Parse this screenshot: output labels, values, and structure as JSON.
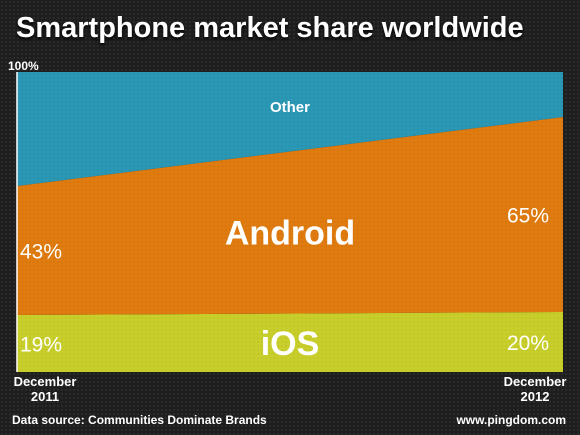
{
  "title": "Smartphone market share worldwide",
  "footer": {
    "source": "Data source: Communities Dominate Brands",
    "credit": "www.pingdom.com"
  },
  "colors": {
    "ios": "#c9cf2a",
    "android": "#e07b0f",
    "other": "#2a97b5",
    "text": "#ffffff"
  },
  "chart_data": {
    "type": "area",
    "stacked": true,
    "y_axis_top_label": "100%",
    "ylim": [
      0,
      100
    ],
    "x": [
      {
        "line1": "December",
        "line2": "2011"
      },
      {
        "line1": "December",
        "line2": "2012"
      }
    ],
    "series": [
      {
        "name": "iOS",
        "values": [
          19,
          20
        ],
        "labels": [
          "19%",
          "20%"
        ]
      },
      {
        "name": "Android",
        "values": [
          43,
          65
        ],
        "labels": [
          "43%",
          "65%"
        ]
      },
      {
        "name": "Other",
        "values": [
          38,
          15
        ],
        "labels": [
          "",
          ""
        ]
      }
    ]
  }
}
